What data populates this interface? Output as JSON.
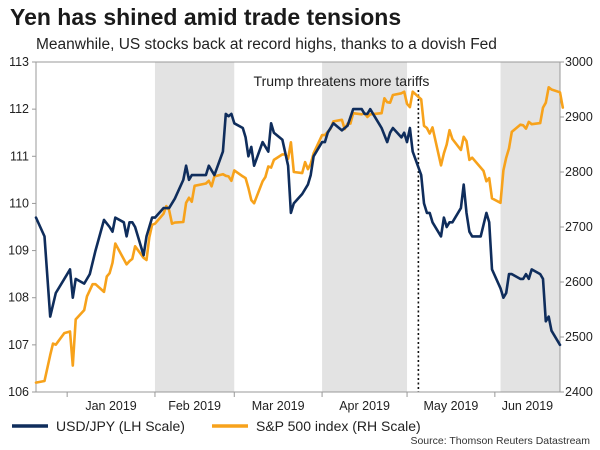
{
  "title": "Yen has shined amid trade tensions",
  "subtitle": "Meanwhile, US stocks back at record highs, thanks to a dovish Fed",
  "source": "Source: Thomson Reuters Datastream",
  "colors": {
    "usdjpy": "#0f2d5c",
    "sp500": "#f7a21b",
    "shade": "#e3e3e3",
    "grid": "#999999"
  },
  "chart_data": {
    "type": "line",
    "title": "Yen has shined amid trade tensions",
    "xlabel": "",
    "ylabel_left": "",
    "ylabel_right": "",
    "grid": false,
    "legend": "bottom-left",
    "x_ticks": [
      "Jan 2019",
      "Feb 2019",
      "Mar 2019",
      "Apr 2019",
      "May 2019",
      "Jun 2019"
    ],
    "y_left_ticks": [
      106,
      107,
      108,
      109,
      110,
      111,
      112,
      113
    ],
    "y_right_ticks": [
      2400,
      2500,
      2600,
      2700,
      2800,
      2900,
      3000
    ],
    "ylim_left": [
      106,
      113
    ],
    "ylim_right": [
      2400,
      3000
    ],
    "xlim": [
      "2018-12-21",
      "2019-06-24"
    ],
    "shaded_periods": [
      [
        "2019-02-01",
        "2019-03-01"
      ],
      [
        "2019-04-01",
        "2019-05-01"
      ],
      [
        "2019-06-03",
        "2019-06-24"
      ]
    ],
    "annotations": [
      {
        "date": "2019-05-05",
        "text": "Trump threatens more tariffs"
      }
    ],
    "series": [
      {
        "name": "USD/JPY (LH Scale)",
        "axis": "left",
        "points": [
          [
            "2018-12-21",
            109.7
          ],
          [
            "2018-12-24",
            109.3
          ],
          [
            "2018-12-26",
            107.6
          ],
          [
            "2018-12-28",
            108.1
          ],
          [
            "2018-12-31",
            108.4
          ],
          [
            "2019-01-02",
            108.6
          ],
          [
            "2019-01-03",
            108.0
          ],
          [
            "2019-01-04",
            108.4
          ],
          [
            "2019-01-07",
            108.3
          ],
          [
            "2019-01-09",
            108.5
          ],
          [
            "2019-01-11",
            109.0
          ],
          [
            "2019-01-14",
            109.65
          ],
          [
            "2019-01-16",
            109.5
          ],
          [
            "2019-01-17",
            109.4
          ],
          [
            "2019-01-18",
            109.7
          ],
          [
            "2019-01-21",
            109.6
          ],
          [
            "2019-01-22",
            109.3
          ],
          [
            "2019-01-23",
            109.6
          ],
          [
            "2019-01-24",
            109.6
          ],
          [
            "2019-01-25",
            109.5
          ],
          [
            "2019-01-28",
            108.9
          ],
          [
            "2019-01-29",
            109.3
          ],
          [
            "2019-01-30",
            109.5
          ],
          [
            "2019-01-31",
            109.7
          ],
          [
            "2019-02-01",
            109.7
          ],
          [
            "2019-02-04",
            109.9
          ],
          [
            "2019-02-06",
            109.9
          ],
          [
            "2019-02-08",
            110.1
          ],
          [
            "2019-02-11",
            110.5
          ],
          [
            "2019-02-12",
            110.8
          ],
          [
            "2019-02-13",
            110.5
          ],
          [
            "2019-02-14",
            110.6
          ],
          [
            "2019-02-15",
            110.6
          ],
          [
            "2019-02-19",
            110.6
          ],
          [
            "2019-02-20",
            110.8
          ],
          [
            "2019-02-21",
            110.7
          ],
          [
            "2019-02-22",
            110.6
          ],
          [
            "2019-02-25",
            111.1
          ],
          [
            "2019-02-26",
            111.9
          ],
          [
            "2019-02-27",
            111.85
          ],
          [
            "2019-02-28",
            111.9
          ],
          [
            "2019-03-01",
            111.7
          ],
          [
            "2019-03-04",
            111.6
          ],
          [
            "2019-03-05",
            111.4
          ],
          [
            "2019-03-06",
            111.0
          ],
          [
            "2019-03-07",
            111.2
          ],
          [
            "2019-03-08",
            110.8
          ],
          [
            "2019-03-11",
            111.3
          ],
          [
            "2019-03-13",
            111.1
          ],
          [
            "2019-03-14",
            111.7
          ],
          [
            "2019-03-15",
            111.5
          ],
          [
            "2019-03-18",
            111.35
          ],
          [
            "2019-03-20",
            110.8
          ],
          [
            "2019-03-21",
            109.8
          ],
          [
            "2019-03-22",
            110.0
          ],
          [
            "2019-03-25",
            110.2
          ],
          [
            "2019-03-27",
            110.4
          ],
          [
            "2019-03-28",
            110.6
          ],
          [
            "2019-03-29",
            111.0
          ],
          [
            "2019-04-01",
            111.3
          ],
          [
            "2019-04-02",
            111.3
          ],
          [
            "2019-04-03",
            111.5
          ],
          [
            "2019-04-05",
            111.7
          ],
          [
            "2019-04-08",
            111.55
          ],
          [
            "2019-04-10",
            111.65
          ],
          [
            "2019-04-12",
            112.0
          ],
          [
            "2019-04-15",
            112.0
          ],
          [
            "2019-04-16",
            111.9
          ],
          [
            "2019-04-17",
            111.9
          ],
          [
            "2019-04-18",
            112.0
          ],
          [
            "2019-04-19",
            111.9
          ],
          [
            "2019-04-22",
            111.6
          ],
          [
            "2019-04-24",
            111.3
          ],
          [
            "2019-04-25",
            111.5
          ],
          [
            "2019-04-26",
            111.6
          ],
          [
            "2019-04-29",
            111.4
          ],
          [
            "2019-04-30",
            111.5
          ],
          [
            "2019-05-01",
            111.3
          ],
          [
            "2019-05-02",
            111.6
          ],
          [
            "2019-05-03",
            111.1
          ],
          [
            "2019-05-06",
            110.6
          ],
          [
            "2019-05-07",
            110.0
          ],
          [
            "2019-05-08",
            109.8
          ],
          [
            "2019-05-09",
            109.8
          ],
          [
            "2019-05-10",
            109.6
          ],
          [
            "2019-05-13",
            109.3
          ],
          [
            "2019-05-14",
            109.7
          ],
          [
            "2019-05-15",
            109.5
          ],
          [
            "2019-05-16",
            109.6
          ],
          [
            "2019-05-17",
            109.6
          ],
          [
            "2019-05-20",
            109.9
          ],
          [
            "2019-05-21",
            110.4
          ],
          [
            "2019-05-22",
            109.8
          ],
          [
            "2019-05-23",
            109.4
          ],
          [
            "2019-05-24",
            109.3
          ],
          [
            "2019-05-27",
            109.3
          ],
          [
            "2019-05-29",
            109.8
          ],
          [
            "2019-05-30",
            109.6
          ],
          [
            "2019-05-31",
            108.6
          ],
          [
            "2019-06-03",
            108.2
          ],
          [
            "2019-06-04",
            108.0
          ],
          [
            "2019-06-05",
            108.1
          ],
          [
            "2019-06-06",
            108.5
          ],
          [
            "2019-06-07",
            108.5
          ],
          [
            "2019-06-10",
            108.4
          ],
          [
            "2019-06-11",
            108.4
          ],
          [
            "2019-06-12",
            108.5
          ],
          [
            "2019-06-13",
            108.4
          ],
          [
            "2019-06-14",
            108.6
          ],
          [
            "2019-06-17",
            108.5
          ],
          [
            "2019-06-18",
            108.4
          ],
          [
            "2019-06-19",
            107.5
          ],
          [
            "2019-06-20",
            107.6
          ],
          [
            "2019-06-21",
            107.3
          ],
          [
            "2019-06-24",
            107.0
          ]
        ]
      },
      {
        "name": "S&P 500 index (RH Scale)",
        "axis": "right",
        "points": [
          [
            "2018-12-21",
            2417
          ],
          [
            "2018-12-24",
            2420
          ],
          [
            "2018-12-26",
            2467
          ],
          [
            "2018-12-27",
            2488
          ],
          [
            "2018-12-28",
            2486
          ],
          [
            "2018-12-31",
            2507
          ],
          [
            "2019-01-02",
            2510
          ],
          [
            "2019-01-03",
            2448
          ],
          [
            "2019-01-04",
            2532
          ],
          [
            "2019-01-07",
            2549
          ],
          [
            "2019-01-08",
            2574
          ],
          [
            "2019-01-09",
            2585
          ],
          [
            "2019-01-10",
            2596
          ],
          [
            "2019-01-11",
            2596
          ],
          [
            "2019-01-14",
            2582
          ],
          [
            "2019-01-15",
            2610
          ],
          [
            "2019-01-16",
            2616
          ],
          [
            "2019-01-17",
            2635
          ],
          [
            "2019-01-18",
            2670
          ],
          [
            "2019-01-22",
            2632
          ],
          [
            "2019-01-23",
            2638
          ],
          [
            "2019-01-24",
            2642
          ],
          [
            "2019-01-25",
            2665
          ],
          [
            "2019-01-28",
            2644
          ],
          [
            "2019-01-29",
            2640
          ],
          [
            "2019-01-30",
            2681
          ],
          [
            "2019-01-31",
            2704
          ],
          [
            "2019-02-01",
            2706
          ],
          [
            "2019-02-04",
            2724
          ],
          [
            "2019-02-05",
            2738
          ],
          [
            "2019-02-06",
            2731
          ],
          [
            "2019-02-07",
            2706
          ],
          [
            "2019-02-08",
            2708
          ],
          [
            "2019-02-11",
            2709
          ],
          [
            "2019-02-12",
            2744
          ],
          [
            "2019-02-13",
            2753
          ],
          [
            "2019-02-14",
            2746
          ],
          [
            "2019-02-15",
            2775
          ],
          [
            "2019-02-19",
            2779
          ],
          [
            "2019-02-20",
            2784
          ],
          [
            "2019-02-21",
            2774
          ],
          [
            "2019-02-22",
            2792
          ],
          [
            "2019-02-25",
            2796
          ],
          [
            "2019-02-26",
            2793
          ],
          [
            "2019-02-27",
            2792
          ],
          [
            "2019-02-28",
            2784
          ],
          [
            "2019-03-01",
            2803
          ],
          [
            "2019-03-04",
            2792
          ],
          [
            "2019-03-05",
            2789
          ],
          [
            "2019-03-06",
            2771
          ],
          [
            "2019-03-07",
            2749
          ],
          [
            "2019-03-08",
            2743
          ],
          [
            "2019-03-11",
            2783
          ],
          [
            "2019-03-12",
            2791
          ],
          [
            "2019-03-13",
            2810
          ],
          [
            "2019-03-14",
            2808
          ],
          [
            "2019-03-15",
            2822
          ],
          [
            "2019-03-18",
            2832
          ],
          [
            "2019-03-19",
            2832
          ],
          [
            "2019-03-20",
            2824
          ],
          [
            "2019-03-21",
            2854
          ],
          [
            "2019-03-22",
            2800
          ],
          [
            "2019-03-25",
            2798
          ],
          [
            "2019-03-26",
            2818
          ],
          [
            "2019-03-27",
            2805
          ],
          [
            "2019-03-28",
            2815
          ],
          [
            "2019-03-29",
            2834
          ],
          [
            "2019-04-01",
            2867
          ],
          [
            "2019-04-02",
            2867
          ],
          [
            "2019-04-03",
            2873
          ],
          [
            "2019-04-04",
            2879
          ],
          [
            "2019-04-05",
            2892
          ],
          [
            "2019-04-08",
            2895
          ],
          [
            "2019-04-09",
            2878
          ],
          [
            "2019-04-10",
            2888
          ],
          [
            "2019-04-11",
            2888
          ],
          [
            "2019-04-12",
            2907
          ],
          [
            "2019-04-15",
            2905
          ],
          [
            "2019-04-16",
            2907
          ],
          [
            "2019-04-17",
            2900
          ],
          [
            "2019-04-18",
            2905
          ],
          [
            "2019-04-22",
            2907
          ],
          [
            "2019-04-23",
            2934
          ],
          [
            "2019-04-24",
            2927
          ],
          [
            "2019-04-25",
            2926
          ],
          [
            "2019-04-26",
            2940
          ],
          [
            "2019-04-29",
            2943
          ],
          [
            "2019-04-30",
            2946
          ],
          [
            "2019-05-01",
            2924
          ],
          [
            "2019-05-02",
            2918
          ],
          [
            "2019-05-03",
            2946
          ],
          [
            "2019-05-06",
            2932
          ],
          [
            "2019-05-07",
            2884
          ],
          [
            "2019-05-08",
            2880
          ],
          [
            "2019-05-09",
            2870
          ],
          [
            "2019-05-10",
            2881
          ],
          [
            "2019-05-13",
            2812
          ],
          [
            "2019-05-14",
            2834
          ],
          [
            "2019-05-15",
            2850
          ],
          [
            "2019-05-16",
            2876
          ],
          [
            "2019-05-17",
            2860
          ],
          [
            "2019-05-20",
            2840
          ],
          [
            "2019-05-21",
            2864
          ],
          [
            "2019-05-22",
            2856
          ],
          [
            "2019-05-23",
            2822
          ],
          [
            "2019-05-24",
            2826
          ],
          [
            "2019-05-28",
            2802
          ],
          [
            "2019-05-29",
            2783
          ],
          [
            "2019-05-30",
            2789
          ],
          [
            "2019-05-31",
            2752
          ],
          [
            "2019-06-03",
            2744
          ],
          [
            "2019-06-04",
            2803
          ],
          [
            "2019-06-05",
            2826
          ],
          [
            "2019-06-06",
            2843
          ],
          [
            "2019-06-07",
            2873
          ],
          [
            "2019-06-10",
            2886
          ],
          [
            "2019-06-11",
            2885
          ],
          [
            "2019-06-12",
            2879
          ],
          [
            "2019-06-13",
            2891
          ],
          [
            "2019-06-14",
            2887
          ],
          [
            "2019-06-17",
            2889
          ],
          [
            "2019-06-18",
            2917
          ],
          [
            "2019-06-19",
            2926
          ],
          [
            "2019-06-20",
            2954
          ],
          [
            "2019-06-21",
            2950
          ],
          [
            "2019-06-24",
            2945
          ],
          [
            "2019-06-25",
            2917
          ]
        ]
      }
    ]
  }
}
